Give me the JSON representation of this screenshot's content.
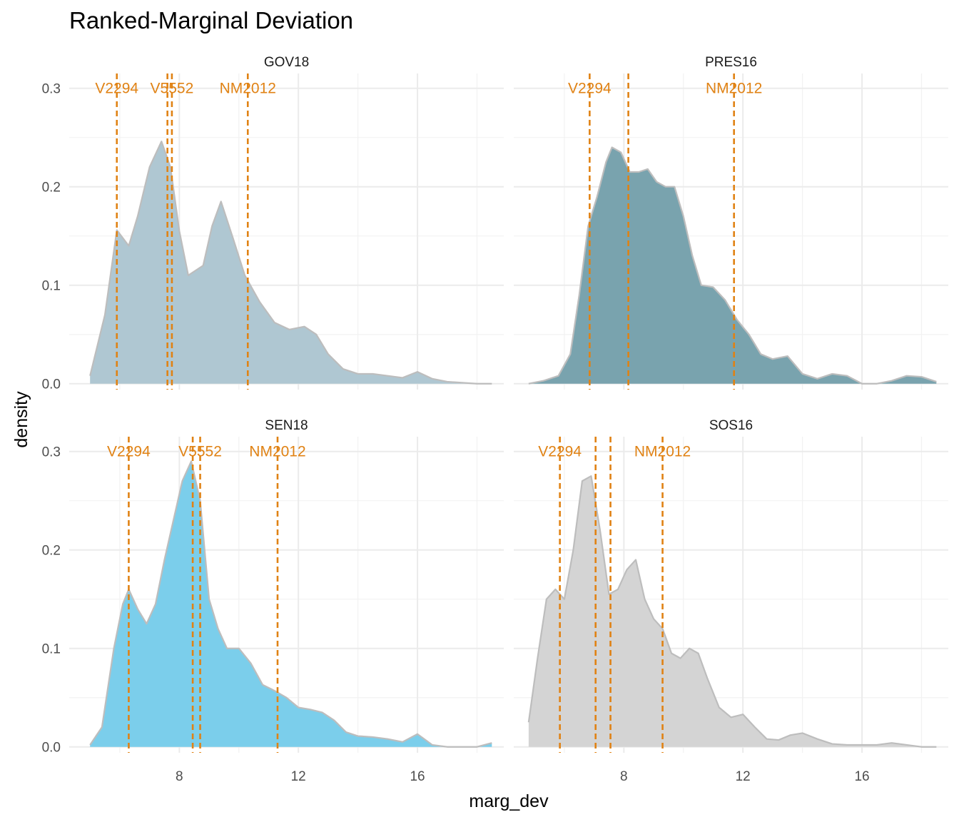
{
  "title": "Ranked-Marginal Deviation",
  "chart_data": {
    "type": "area",
    "title": "Ranked-Marginal Deviation",
    "xlabel": "marg_dev",
    "ylabel": "density",
    "xlim": [
      4.3,
      18.9
    ],
    "ylim": [
      -0.006,
      0.315
    ],
    "x_ticks": [
      8,
      12,
      16
    ],
    "x_tick_labels": [
      "8",
      "12",
      "16"
    ],
    "y_ticks": [
      0.0,
      0.1,
      0.2,
      0.3
    ],
    "y_tick_labels": [
      "0.0",
      "0.1",
      "0.2",
      "0.3"
    ],
    "grid": true,
    "legend": "none",
    "line_color": "#E08214",
    "panels": [
      {
        "name": "GOV18",
        "fill": "#AFC7D2",
        "x": [
          5.0,
          5.5,
          5.9,
          6.3,
          6.6,
          7.0,
          7.4,
          7.7,
          8.0,
          8.3,
          8.8,
          9.1,
          9.4,
          9.8,
          10.2,
          10.7,
          11.2,
          11.7,
          12.2,
          12.6,
          13.0,
          13.5,
          14.0,
          14.5,
          15.0,
          15.5,
          16.0,
          16.5,
          17.0,
          17.5,
          18.0,
          18.5
        ],
        "y": [
          0.008,
          0.07,
          0.156,
          0.14,
          0.17,
          0.22,
          0.246,
          0.22,
          0.155,
          0.11,
          0.12,
          0.16,
          0.185,
          0.148,
          0.11,
          0.083,
          0.062,
          0.055,
          0.058,
          0.05,
          0.03,
          0.015,
          0.01,
          0.01,
          0.008,
          0.006,
          0.012,
          0.005,
          0.002,
          0.001,
          0.0,
          0.0
        ],
        "vlines": [
          {
            "x": 5.9,
            "label": "V2294"
          },
          {
            "x": 7.6,
            "label": ""
          },
          {
            "x": 7.75,
            "label": "V5552"
          },
          {
            "x": 10.3,
            "label": "NM2012"
          }
        ]
      },
      {
        "name": "PRES16",
        "fill": "#79A3AE",
        "x": [
          4.8,
          5.3,
          5.8,
          6.2,
          6.5,
          6.8,
          7.1,
          7.4,
          7.6,
          7.9,
          8.2,
          8.5,
          8.8,
          9.1,
          9.4,
          9.7,
          10.0,
          10.3,
          10.6,
          11.0,
          11.4,
          11.8,
          12.2,
          12.6,
          13.0,
          13.5,
          14.0,
          14.5,
          15.0,
          15.5,
          16.0,
          16.5,
          17.0,
          17.5,
          18.0,
          18.5
        ],
        "y": [
          0.0,
          0.003,
          0.008,
          0.03,
          0.09,
          0.16,
          0.19,
          0.225,
          0.24,
          0.235,
          0.215,
          0.215,
          0.218,
          0.205,
          0.2,
          0.2,
          0.17,
          0.13,
          0.1,
          0.098,
          0.085,
          0.065,
          0.05,
          0.03,
          0.025,
          0.028,
          0.01,
          0.005,
          0.01,
          0.008,
          0.0,
          0.0,
          0.003,
          0.008,
          0.007,
          0.002
        ],
        "vlines": [
          {
            "x": 6.85,
            "label": "V2294"
          },
          {
            "x": 8.15,
            "label": ""
          },
          {
            "x": 11.7,
            "label": "NM2012"
          }
        ]
      },
      {
        "name": "SEN18",
        "fill": "#7BCEEB",
        "x": [
          5.0,
          5.4,
          5.8,
          6.1,
          6.3,
          6.6,
          6.9,
          7.2,
          7.5,
          7.8,
          8.1,
          8.4,
          8.7,
          9.0,
          9.3,
          9.6,
          10.0,
          10.4,
          10.8,
          11.2,
          11.6,
          12.0,
          12.4,
          12.8,
          13.2,
          13.6,
          14.0,
          14.5,
          15.0,
          15.5,
          16.0,
          16.5,
          17.0,
          17.5,
          18.0,
          18.5
        ],
        "y": [
          0.002,
          0.02,
          0.1,
          0.145,
          0.16,
          0.14,
          0.125,
          0.145,
          0.19,
          0.23,
          0.27,
          0.29,
          0.25,
          0.15,
          0.12,
          0.1,
          0.1,
          0.085,
          0.063,
          0.057,
          0.05,
          0.04,
          0.038,
          0.035,
          0.027,
          0.015,
          0.011,
          0.01,
          0.008,
          0.005,
          0.013,
          0.002,
          0.0,
          0.0,
          0.0,
          0.004
        ],
        "vlines": [
          {
            "x": 6.3,
            "label": "V2294"
          },
          {
            "x": 8.45,
            "label": ""
          },
          {
            "x": 8.7,
            "label": "V5552"
          },
          {
            "x": 11.3,
            "label": "NM2012"
          }
        ]
      },
      {
        "name": "SOS16",
        "fill": "#D4D4D4",
        "x": [
          4.8,
          5.1,
          5.4,
          5.7,
          6.0,
          6.3,
          6.6,
          6.9,
          7.2,
          7.5,
          7.8,
          8.1,
          8.4,
          8.7,
          9.0,
          9.3,
          9.6,
          9.9,
          10.2,
          10.5,
          10.8,
          11.2,
          11.6,
          12.0,
          12.4,
          12.8,
          13.2,
          13.6,
          14.0,
          14.5,
          15.0,
          15.5,
          16.0,
          16.5,
          17.0,
          17.5,
          18.0,
          18.5
        ],
        "y": [
          0.025,
          0.09,
          0.15,
          0.16,
          0.15,
          0.2,
          0.27,
          0.275,
          0.22,
          0.155,
          0.16,
          0.18,
          0.19,
          0.15,
          0.13,
          0.12,
          0.095,
          0.09,
          0.1,
          0.095,
          0.07,
          0.04,
          0.03,
          0.033,
          0.02,
          0.008,
          0.007,
          0.012,
          0.014,
          0.008,
          0.003,
          0.002,
          0.002,
          0.002,
          0.004,
          0.002,
          0.0,
          0.0
        ],
        "vlines": [
          {
            "x": 5.85,
            "label": "V2294"
          },
          {
            "x": 7.05,
            "label": ""
          },
          {
            "x": 7.55,
            "label": ""
          },
          {
            "x": 9.3,
            "label": "NM2012"
          }
        ]
      }
    ]
  }
}
